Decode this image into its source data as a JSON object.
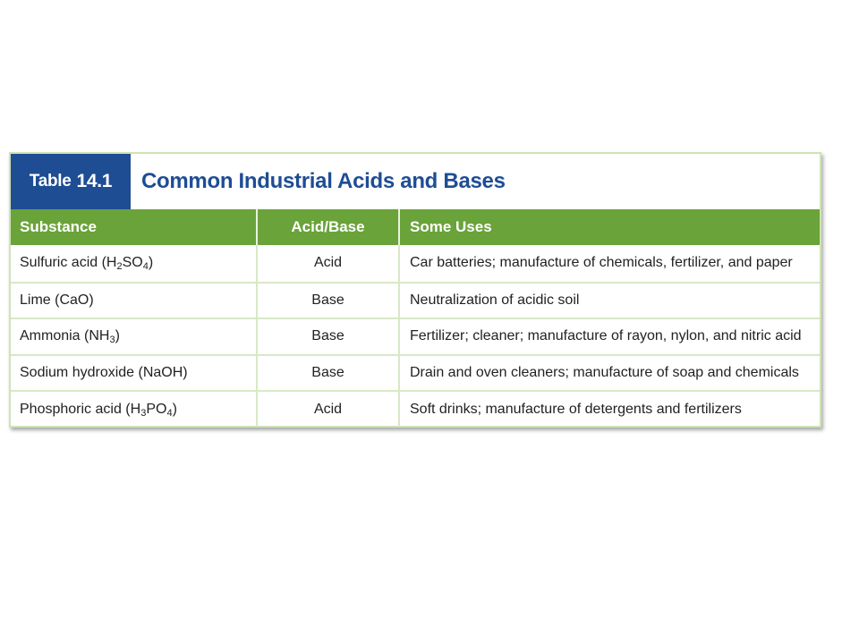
{
  "table": {
    "label_prefix": "Table",
    "label_number": "14.1",
    "title": "Common Industrial Acids and Bases",
    "headers": [
      "Substance",
      "Acid/Base",
      "Some Uses"
    ],
    "rows": [
      {
        "substance": {
          "name": "Sulfuric acid (",
          "formula": [
            [
              "H",
              "2"
            ],
            [
              "SO",
              "4"
            ]
          ],
          "close": ")"
        },
        "type": "Acid",
        "uses": "Car batteries; manufacture of chemicals, fertilizer, and paper"
      },
      {
        "substance": {
          "name": "Lime (CaO)",
          "formula": [],
          "close": ""
        },
        "type": "Base",
        "uses": "Neutralization of acidic soil"
      },
      {
        "substance": {
          "name": "Ammonia (",
          "formula": [
            [
              "NH",
              "3"
            ]
          ],
          "close": ")"
        },
        "type": "Base",
        "uses": "Fertilizer; cleaner; manufacture of rayon, nylon, and nitric acid"
      },
      {
        "substance": {
          "name": "Sodium hydroxide (NaOH)",
          "formula": [],
          "close": ""
        },
        "type": "Base",
        "uses": "Drain and oven cleaners; manufacture of soap and chemicals"
      },
      {
        "substance": {
          "name": "Phosphoric acid (",
          "formula": [
            [
              "H",
              "3"
            ],
            [
              "PO",
              "4"
            ]
          ],
          "close": ")"
        },
        "type": "Acid",
        "uses": "Soft drinks; manufacture of detergents and fertilizers"
      }
    ]
  },
  "colors": {
    "title_label_bg": "#1e4d94",
    "header_bg": "#6aa33a",
    "grid": "#d8e8c6"
  }
}
